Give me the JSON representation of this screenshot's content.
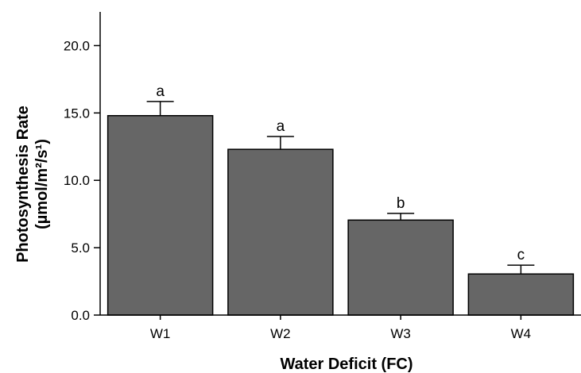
{
  "chart_data": {
    "type": "bar",
    "title": "",
    "xlabel": "Water Deficit (FC)",
    "ylabel_line1": "Photosynthesis Rate",
    "ylabel_line2": "(µmol/m²/s¹)",
    "categories": [
      "W1",
      "W2",
      "W3",
      "W4"
    ],
    "values": [
      14.8,
      12.3,
      7.05,
      3.05
    ],
    "error_upper": [
      15.85,
      13.25,
      7.55,
      3.7
    ],
    "significance": [
      "a",
      "a",
      "b",
      "c"
    ],
    "ylim": [
      0,
      22.5
    ],
    "yticks": [
      0.0,
      5.0,
      10.0,
      15.0,
      20.0
    ],
    "ytick_labels": [
      "0.0",
      "5.0",
      "10.0",
      "15.0",
      "20.0"
    ],
    "grid": false,
    "legend": "none",
    "colors": {
      "bar": "#666666",
      "bar_edge": "#000000",
      "axis": "#000000"
    }
  }
}
